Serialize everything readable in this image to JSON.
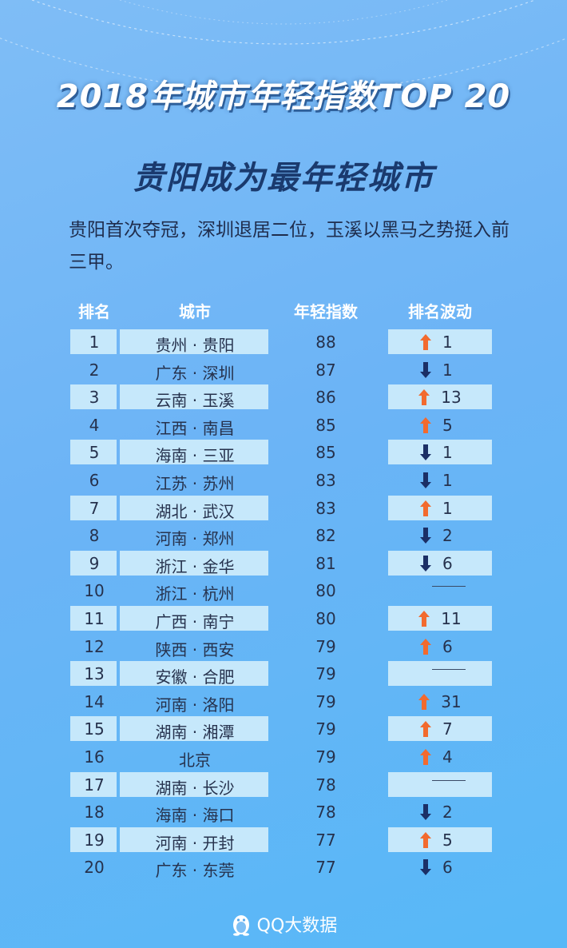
{
  "title": "2018年城市年轻指数TOP 20",
  "subtitle": "贵阳成为最年轻城市",
  "description": "贵阳首次夺冠，深圳退居二位，玉溪以黑马之势挺入前三甲。",
  "table": {
    "headers": {
      "rank": "排名",
      "city": "城市",
      "index": "年轻指数",
      "change": "排名波动"
    },
    "rows": [
      {
        "rank": "1",
        "city": "贵州 · 贵阳",
        "index": "88",
        "dir": "up",
        "change": "1"
      },
      {
        "rank": "2",
        "city": "广东 · 深圳",
        "index": "87",
        "dir": "down",
        "change": "1"
      },
      {
        "rank": "3",
        "city": "云南 · 玉溪",
        "index": "86",
        "dir": "up",
        "change": "13"
      },
      {
        "rank": "4",
        "city": "江西 · 南昌",
        "index": "85",
        "dir": "up",
        "change": "5"
      },
      {
        "rank": "5",
        "city": "海南 · 三亚",
        "index": "85",
        "dir": "down",
        "change": "1"
      },
      {
        "rank": "6",
        "city": "江苏 · 苏州",
        "index": "83",
        "dir": "down",
        "change": "1"
      },
      {
        "rank": "7",
        "city": "湖北 · 武汉",
        "index": "83",
        "dir": "up",
        "change": "1"
      },
      {
        "rank": "8",
        "city": "河南 · 郑州",
        "index": "82",
        "dir": "down",
        "change": "2"
      },
      {
        "rank": "9",
        "city": "浙江 · 金华",
        "index": "81",
        "dir": "down",
        "change": "6"
      },
      {
        "rank": "10",
        "city": "浙江 · 杭州",
        "index": "80",
        "dir": "none",
        "change": ""
      },
      {
        "rank": "11",
        "city": "广西 · 南宁",
        "index": "80",
        "dir": "up",
        "change": "11"
      },
      {
        "rank": "12",
        "city": "陕西 · 西安",
        "index": "79",
        "dir": "up",
        "change": "6"
      },
      {
        "rank": "13",
        "city": "安徽 · 合肥",
        "index": "79",
        "dir": "none",
        "change": ""
      },
      {
        "rank": "14",
        "city": "河南 · 洛阳",
        "index": "79",
        "dir": "up",
        "change": "31"
      },
      {
        "rank": "15",
        "city": "湖南 · 湘潭",
        "index": "79",
        "dir": "up",
        "change": "7"
      },
      {
        "rank": "16",
        "city": "北京",
        "index": "79",
        "dir": "up",
        "change": "4"
      },
      {
        "rank": "17",
        "city": "湖南 · 长沙",
        "index": "78",
        "dir": "none",
        "change": ""
      },
      {
        "rank": "18",
        "city": "海南 · 海口",
        "index": "78",
        "dir": "down",
        "change": "2"
      },
      {
        "rank": "19",
        "city": "河南 · 开封",
        "index": "77",
        "dir": "up",
        "change": "5"
      },
      {
        "rank": "20",
        "city": "广东 · 东莞",
        "index": "77",
        "dir": "down",
        "change": "6"
      }
    ]
  },
  "colors": {
    "up": "#f26a2e",
    "down": "#1b2f66",
    "band": "#c6e8fb"
  },
  "footer": {
    "logo_text": "QQ大数据",
    "logo_icon": "penguin-icon"
  }
}
